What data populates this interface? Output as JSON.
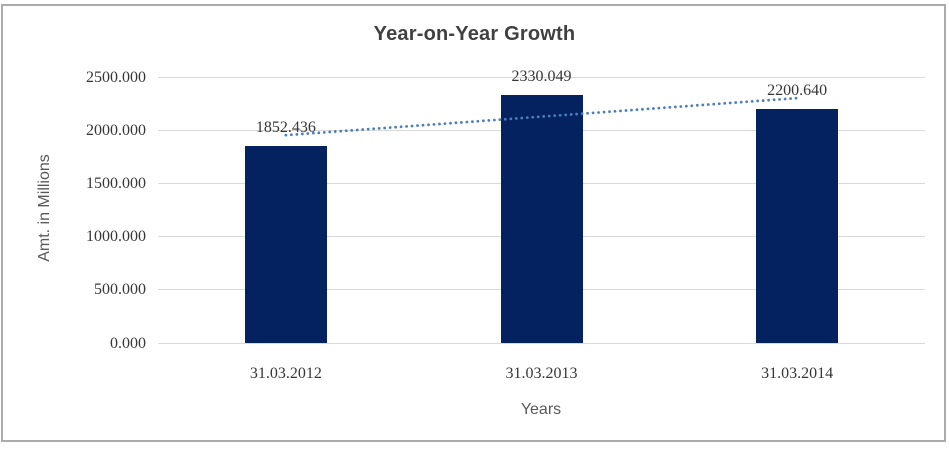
{
  "chart_data": {
    "type": "bar",
    "title": "Year-on-Year Growth",
    "xlabel": "Years",
    "ylabel": "Amt. in Millions",
    "categories": [
      "31.03.2012",
      "31.03.2013",
      "31.03.2014"
    ],
    "values": [
      1852.436,
      2330.049,
      2200.64
    ],
    "data_labels": [
      "1852.436",
      "2330.049",
      "2200.640"
    ],
    "ylim": [
      0,
      2500
    ],
    "ytick_values": [
      0,
      500,
      1000,
      1500,
      2000,
      2500
    ],
    "ytick_labels": [
      "0.000",
      "500.000",
      "1000.000",
      "1500.000",
      "2000.000",
      "2500.000"
    ],
    "grid": true,
    "legend": "none",
    "trendline": {
      "type": "linear",
      "style": "dotted"
    },
    "colors": {
      "bar": "#04225f",
      "trendline": "#4a7ebb",
      "gridline": "#d9d9d9",
      "title": "#404040",
      "axis_title": "#595959",
      "tick_label": "#363636",
      "frame_border": "#ababab",
      "background": "#ffffff"
    }
  }
}
